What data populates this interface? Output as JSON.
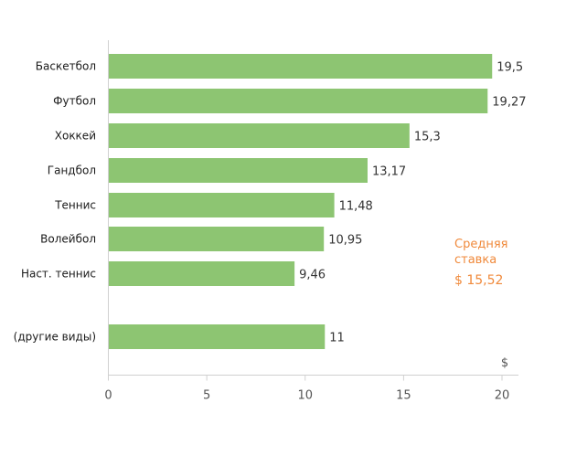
{
  "chart_data": {
    "type": "bar",
    "orientation": "horizontal",
    "categories": [
      "Баскетбол",
      "Футбол",
      "Хоккей",
      "Гандбол",
      "Теннис",
      "Волейбол",
      "Наст. теннис",
      "(другие виды)"
    ],
    "values": [
      19.5,
      19.27,
      15.3,
      13.17,
      11.48,
      10.95,
      9.46,
      11
    ],
    "value_labels": [
      "19,5",
      "19,27",
      "15,3",
      "13,17",
      "11,48",
      "10,95",
      "9,46",
      "11"
    ],
    "xlim": [
      0,
      20.7
    ],
    "xticks": [
      0,
      5,
      10,
      15,
      20
    ],
    "xtick_labels": [
      "0",
      "5",
      "10",
      "15",
      "20"
    ],
    "xlabel": "$",
    "ylabel": "",
    "grid": false,
    "bar_color": "#8dc572",
    "annotation": {
      "line1": "Средняя",
      "line2": "ставка",
      "value": "$ 15,52",
      "color": "#f08a3c"
    }
  }
}
